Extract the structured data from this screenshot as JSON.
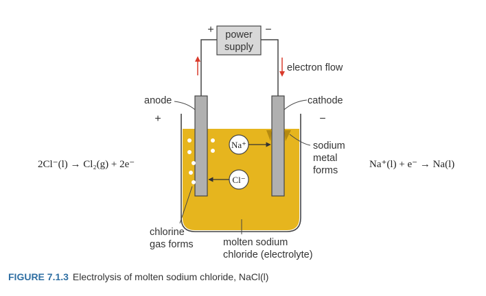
{
  "power_supply": {
    "line1": "power",
    "line2": "supply",
    "plus": "+",
    "minus": "−"
  },
  "electron_flow": "electron flow",
  "anode": {
    "label": "anode",
    "sign": "+"
  },
  "cathode": {
    "label": "cathode",
    "sign": "−"
  },
  "ions": {
    "sodium": "Na⁺",
    "chloride": "Cl⁻"
  },
  "sodium_metal": [
    "sodium",
    "metal",
    "forms"
  ],
  "chlorine_gas": [
    "chlorine",
    "gas forms"
  ],
  "electrolyte": [
    "molten sodium",
    "chloride (electrolyte)"
  ],
  "anode_equation": "2Cl⁻(l) → Cl₂(g) + 2e⁻",
  "cathode_equation": "Na⁺(l) + e⁻ → Na(l)",
  "caption": {
    "figure": "FIGURE 7.1.3",
    "text": "Electrolysis of molten sodium chloride, NaCl(l)"
  },
  "colors": {
    "electrolyte": "#e6b51e",
    "electrode": "#b0b0b0",
    "arrow": "#d93a2b",
    "caption_accent": "#2f6fa3"
  }
}
